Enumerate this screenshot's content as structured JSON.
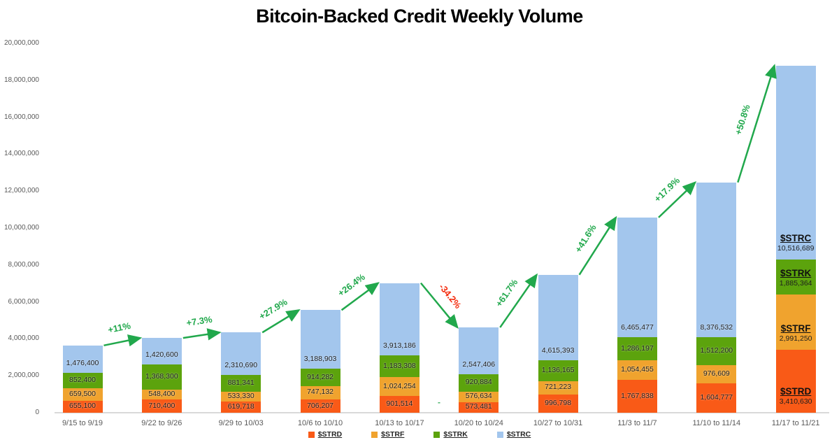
{
  "title": "Bitcoin-Backed Credit Weekly Volume",
  "chart_data": {
    "type": "bar",
    "stacked": true,
    "title": "Bitcoin-Backed Credit Weekly Volume",
    "xlabel": "",
    "ylabel": "",
    "ylim": [
      0,
      20000000
    ],
    "grid": false,
    "legend_position": "bottom",
    "categories": [
      "9/15 to 9/19",
      "9/22 to 9/26",
      "9/29 to 10/03",
      "10/6 to 10/10",
      "10/13 to 10/17",
      "10/20 to 10/24",
      "10/27 to 10/31",
      "11/3 to 11/7",
      "11/10 to 11/14",
      "11/17 to 11/21"
    ],
    "y_ticks": [
      "0",
      "2,000,000",
      "4,000,000",
      "6,000,000",
      "8,000,000",
      "10,000,000",
      "12,000,000",
      "14,000,000",
      "16,000,000",
      "18,000,000",
      "20,000,000"
    ],
    "series": [
      {
        "name": "$STRD",
        "color": "#F95A17",
        "label_anchor": "center",
        "values": [
          655100,
          710400,
          619718,
          706207,
          901514,
          573481,
          996798,
          1767838,
          1604777,
          3410630
        ]
      },
      {
        "name": "$STRF",
        "color": "#F0A32E",
        "label_anchor": "center",
        "values": [
          659500,
          548400,
          533330,
          747132,
          1024254,
          576634,
          721223,
          1054455,
          976609,
          2991250
        ]
      },
      {
        "name": "$STRK",
        "color": "#5CA30D",
        "label_anchor": "center",
        "values": [
          852400,
          1368300,
          881341,
          914282,
          1183308,
          920884,
          1136165,
          1286197,
          1512200,
          1885364
        ]
      },
      {
        "name": "$STRC",
        "color": "#A3C6ED",
        "label_anchor": "bottom",
        "values": [
          1476400,
          1420600,
          2310690,
          3188903,
          3913186,
          2547406,
          4615393,
          6465477,
          8376532,
          10516689
        ]
      }
    ],
    "last_bar_series_labels": true,
    "arrow_color": "#21A84C",
    "pct_changes": [
      {
        "label": "+11%",
        "color": "#21A84C"
      },
      {
        "label": "+7.3%",
        "color": "#21A84C"
      },
      {
        "label": "+27.9%",
        "color": "#21A84C"
      },
      {
        "label": "+26.4%",
        "color": "#21A84C"
      },
      {
        "label": "-34.2%",
        "color": "#F42A0C"
      },
      {
        "label": "+61.7%",
        "color": "#21A84C"
      },
      {
        "label": "+41.6%",
        "color": "#21A84C"
      },
      {
        "label": "+17.9%",
        "color": "#21A84C"
      },
      {
        "label": "+50.8%",
        "color": "#21A84C"
      }
    ]
  },
  "legend": {
    "items": [
      {
        "label": "$STRD",
        "color": "#F95A17"
      },
      {
        "label": "$STRF",
        "color": "#F0A32E"
      },
      {
        "label": "$STRK",
        "color": "#5CA30D"
      },
      {
        "label": "$STRC",
        "color": "#A3C6ED"
      }
    ]
  },
  "annotations": {
    "stray_dash": "-"
  }
}
